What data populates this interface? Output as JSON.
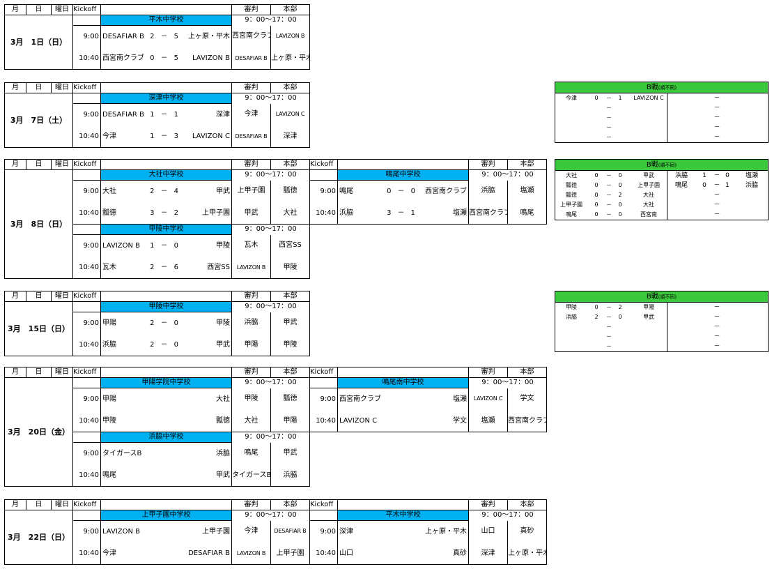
{
  "headers": {
    "month": "月",
    "day": "日",
    "weekday": "曜日",
    "kickoff": "Kickoff",
    "referee": "審判",
    "hq": "本部",
    "hours": "9：00～17：00"
  },
  "blocks": [
    {
      "date": "3月　1日（日）",
      "venues": [
        {
          "name": "平木中学校",
          "matches": [
            {
              "time": "9:00",
              "home": "DESAFIAR B",
              "hs": "2",
              "sep": "－",
              "as": "5",
              "away": "上ヶ原・平木",
              "ref": "西宮南クラブ",
              "hq": "LAVIZON B"
            },
            {
              "time": "10:40",
              "home": "西宮南クラブ",
              "hs": "0",
              "sep": "－",
              "as": "5",
              "away": "LAVIZON B",
              "ref": "DESAFIAR B",
              "hq": "上ヶ原・平木"
            }
          ]
        }
      ]
    },
    {
      "date": "3月　7日（土）",
      "venues": [
        {
          "name": "深津中学校",
          "matches": [
            {
              "time": "9:00",
              "home": "DESAFIAR B",
              "hs": "1",
              "sep": "－",
              "as": "1",
              "away": "深津",
              "ref": "今津",
              "hq": "LAVIZON C"
            },
            {
              "time": "10:40",
              "home": "今津",
              "hs": "1",
              "sep": "－",
              "as": "3",
              "away": "LAVIZON C",
              "ref": "DESAFIAR B",
              "hq": "深津"
            }
          ]
        }
      ]
    },
    {
      "date": "3月　8日（日）",
      "venues": [
        {
          "name": "大社中学校",
          "matches": [
            {
              "time": "9:00",
              "home": "大社",
              "hs": "2",
              "sep": "－",
              "as": "4",
              "away": "甲武",
              "ref": "上甲子園",
              "hq": "瓢徳"
            },
            {
              "time": "10:40",
              "home": "瓢徳",
              "hs": "3",
              "sep": "－",
              "as": "2",
              "away": "上甲子園",
              "ref": "甲武",
              "hq": "大社"
            }
          ]
        },
        {
          "name": "鳴尾中学校",
          "matches": [
            {
              "time": "9:00",
              "home": "鳴尾",
              "hs": "0",
              "sep": "－",
              "as": "0",
              "away": "西宮南クラブ",
              "ref": "浜脇",
              "hq": "塩瀬"
            },
            {
              "time": "10:40",
              "home": "浜脇",
              "hs": "3",
              "sep": "－",
              "as": "1",
              "away": "塩瀬",
              "ref": "西宮南クラブ",
              "hq": "鳴尾"
            }
          ]
        },
        {
          "name": "甲陵中学校",
          "matches": [
            {
              "time": "9:00",
              "home": "LAVIZON B",
              "hs": "1",
              "sep": "－",
              "as": "0",
              "away": "甲陵",
              "ref": "瓦木",
              "hq": "西宮SS"
            },
            {
              "time": "10:40",
              "home": "瓦木",
              "hs": "2",
              "sep": "－",
              "as": "6",
              "away": "西宮SS",
              "ref": "LAVIZON B",
              "hq": "甲陵"
            }
          ]
        }
      ]
    },
    {
      "date": "3月　15日（日）",
      "venues": [
        {
          "name": "甲陵中学校",
          "matches": [
            {
              "time": "9:00",
              "home": "甲陽",
              "hs": "2",
              "sep": "－",
              "as": "0",
              "away": "甲陵",
              "ref": "浜脇",
              "hq": "甲武"
            },
            {
              "time": "10:40",
              "home": "浜脇",
              "hs": "2",
              "sep": "－",
              "as": "0",
              "away": "甲武",
              "ref": "甲陽",
              "hq": "甲陵"
            }
          ]
        }
      ]
    },
    {
      "date": "3月　20日（金）",
      "venues": [
        {
          "name": "甲陽学院中学校",
          "matches": [
            {
              "time": "9:00",
              "home": "甲陽",
              "hs": "",
              "sep": "",
              "as": "",
              "away": "大社",
              "ref": "甲陵",
              "hq": "瓢徳"
            },
            {
              "time": "10:40",
              "home": "甲陵",
              "hs": "",
              "sep": "",
              "as": "",
              "away": "瓢徳",
              "ref": "大社",
              "hq": "甲陽"
            }
          ]
        },
        {
          "name": "鳴尾南中学校",
          "matches": [
            {
              "time": "9:00",
              "home": "西宮南クラブ",
              "hs": "",
              "sep": "",
              "as": "",
              "away": "塩瀬",
              "ref": "LAVIZON C",
              "hq": "学文"
            },
            {
              "time": "10:40",
              "home": "LAVIZON C",
              "hs": "",
              "sep": "",
              "as": "",
              "away": "学文",
              "ref": "塩瀬",
              "hq": "西宮南クラブ"
            }
          ]
        },
        {
          "name": "浜脇中学校",
          "matches": [
            {
              "time": "9:00",
              "home": "タイガースB",
              "hs": "",
              "sep": "",
              "as": "",
              "away": "浜脇",
              "ref": "鳴尾",
              "hq": "甲武"
            },
            {
              "time": "10:40",
              "home": "鳴尾",
              "hs": "",
              "sep": "",
              "as": "",
              "away": "甲武",
              "ref": "タイガースB",
              "hq": "浜脇"
            }
          ]
        }
      ]
    },
    {
      "date": "3月　22日（日）",
      "venues": [
        {
          "name": "上甲子園中学校",
          "matches": [
            {
              "time": "9:00",
              "home": "LAVIZON B",
              "hs": "",
              "sep": "",
              "as": "",
              "away": "上甲子園",
              "ref": "今津",
              "hq": "DESAFIAR B"
            },
            {
              "time": "10:40",
              "home": "今津",
              "hs": "",
              "sep": "",
              "as": "",
              "away": "DESAFIAR B",
              "ref": "LAVIZON B",
              "hq": "上甲子園"
            }
          ]
        },
        {
          "name": "平木中学校",
          "matches": [
            {
              "time": "9:00",
              "home": "深津",
              "hs": "",
              "sep": "",
              "as": "",
              "away": "上ヶ原・平木",
              "ref": "山口",
              "hq": "真砂"
            },
            {
              "time": "10:40",
              "home": "山口",
              "hs": "",
              "sep": "",
              "as": "",
              "away": "真砂",
              "ref": "深津",
              "hq": "上ヶ原・平木"
            }
          ]
        }
      ]
    }
  ],
  "bboxes": [
    {
      "title": "B戦",
      "sub": "(順不同)",
      "left": [
        {
          "h": "今津",
          "hs": "0",
          "sep": "－",
          "as": "1",
          "a": "LAVIZON C"
        },
        {
          "h": "",
          "hs": "",
          "sep": "－",
          "as": "",
          "a": ""
        },
        {
          "h": "",
          "hs": "",
          "sep": "－",
          "as": "",
          "a": ""
        },
        {
          "h": "",
          "hs": "",
          "sep": "－",
          "as": "",
          "a": ""
        },
        {
          "h": "",
          "hs": "",
          "sep": "－",
          "as": "",
          "a": ""
        }
      ],
      "right": [
        {
          "h": "",
          "hs": "",
          "sep": "－",
          "as": "",
          "a": ""
        },
        {
          "h": "",
          "hs": "",
          "sep": "－",
          "as": "",
          "a": ""
        },
        {
          "h": "",
          "hs": "",
          "sep": "－",
          "as": "",
          "a": ""
        },
        {
          "h": "",
          "hs": "",
          "sep": "－",
          "as": "",
          "a": ""
        },
        {
          "h": "",
          "hs": "",
          "sep": "－",
          "as": "",
          "a": ""
        }
      ]
    },
    {
      "title": "B戦",
      "sub": "(順不同)",
      "left": [
        {
          "h": "大社",
          "hs": "0",
          "sep": "－",
          "as": "0",
          "a": "甲武"
        },
        {
          "h": "瓢徳",
          "hs": "0",
          "sep": "－",
          "as": "0",
          "a": "上甲子園"
        },
        {
          "h": "瓢徳",
          "hs": "0",
          "sep": "－",
          "as": "2",
          "a": "大社"
        },
        {
          "h": "上甲子園",
          "hs": "0",
          "sep": "－",
          "as": "0",
          "a": "大社"
        },
        {
          "h": "鳴尾",
          "hs": "0",
          "sep": "－",
          "as": "0",
          "a": "西宮南"
        }
      ],
      "right": [
        {
          "h": "浜脇",
          "hs": "1",
          "sep": "－",
          "as": "0",
          "a": "塩瀬"
        },
        {
          "h": "鳴尾",
          "hs": "0",
          "sep": "－",
          "as": "1",
          "a": "浜脇"
        },
        {
          "h": "",
          "hs": "",
          "sep": "－",
          "as": "",
          "a": ""
        },
        {
          "h": "",
          "hs": "",
          "sep": "－",
          "as": "",
          "a": ""
        },
        {
          "h": "",
          "hs": "",
          "sep": "－",
          "as": "",
          "a": ""
        }
      ]
    },
    {
      "title": "B戦",
      "sub": "(順不同)",
      "left": [
        {
          "h": "甲陵",
          "hs": "0",
          "sep": "－",
          "as": "2",
          "a": "甲陽"
        },
        {
          "h": "浜脇",
          "hs": "2",
          "sep": "－",
          "as": "0",
          "a": "甲武"
        },
        {
          "h": "",
          "hs": "",
          "sep": "－",
          "as": "",
          "a": ""
        },
        {
          "h": "",
          "hs": "",
          "sep": "－",
          "as": "",
          "a": ""
        },
        {
          "h": "",
          "hs": "",
          "sep": "－",
          "as": "",
          "a": ""
        }
      ],
      "right": [
        {
          "h": "",
          "hs": "",
          "sep": "－",
          "as": "",
          "a": ""
        },
        {
          "h": "",
          "hs": "",
          "sep": "－",
          "as": "",
          "a": ""
        },
        {
          "h": "",
          "hs": "",
          "sep": "－",
          "as": "",
          "a": ""
        },
        {
          "h": "",
          "hs": "",
          "sep": "－",
          "as": "",
          "a": ""
        },
        {
          "h": "",
          "hs": "",
          "sep": "－",
          "as": "",
          "a": ""
        }
      ]
    }
  ]
}
